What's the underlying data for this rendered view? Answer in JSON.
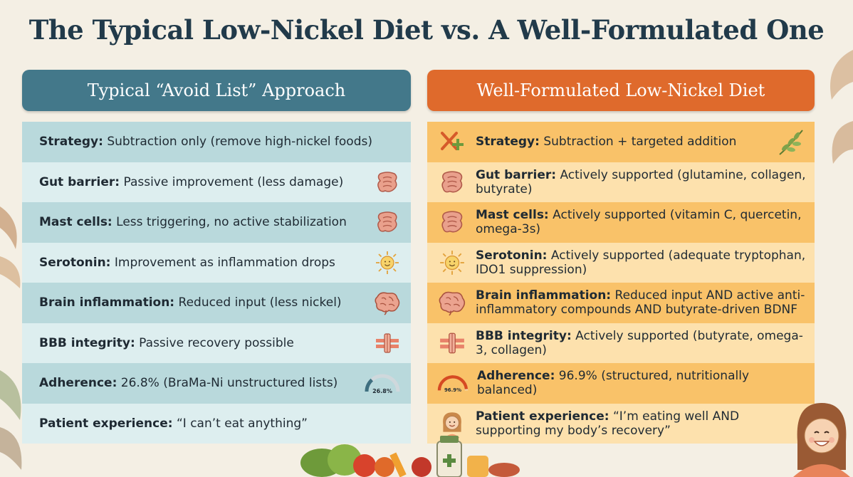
{
  "title": "The Typical Low-Nickel Diet vs. A Well-Formulated One",
  "left": {
    "header": "Typical “Avoid List” Approach",
    "rows": [
      {
        "label": "Strategy:",
        "text": "Subtraction only (remove high-nickel foods)",
        "icon": ""
      },
      {
        "label": "Gut barrier:",
        "text": "Passive improvement (less damage)",
        "icon": "intestine-icon"
      },
      {
        "label": "Mast cells:",
        "text": "Less triggering, no active stabilization",
        "icon": "intestine-icon"
      },
      {
        "label": "Serotonin:",
        "text": "Improvement as inflammation drops",
        "icon": "sun-face-icon"
      },
      {
        "label": "Brain inflammation:",
        "text": "Reduced input (less nickel)",
        "icon": "brain-icon"
      },
      {
        "label": "BBB integrity:",
        "text": "Passive recovery possible",
        "icon": "barrier-icon"
      },
      {
        "label": "Adherence:",
        "text": "26.8% (BraMa-Ni unstructured lists)",
        "icon": "gauge-icon",
        "gauge_value": "26.8%",
        "gauge_fraction": 0.268
      },
      {
        "label": "Patient experience:",
        "text": "“I can’t eat anything”",
        "icon": ""
      }
    ]
  },
  "right": {
    "header": "Well-Formulated Low-Nickel Diet",
    "rows": [
      {
        "label": "Strategy:",
        "text": "Subtraction + targeted addition",
        "icon": "cross-plus-icon"
      },
      {
        "label": "Gut barrier:",
        "text": "Actively supported (glutamine, collagen, butyrate)",
        "icon": "intestine-icon"
      },
      {
        "label": "Mast cells:",
        "text": "Actively supported (vitamin C, quercetin, omega-3s)",
        "icon": "intestine-icon"
      },
      {
        "label": "Serotonin:",
        "text": "Actively supported (adequate tryptophan, IDO1 suppression)",
        "icon": "sun-face-icon"
      },
      {
        "label": "Brain inflammation:",
        "text": "Reduced input AND active anti-inflammatory compounds AND butyrate-driven BDNF",
        "icon": "brain-icon"
      },
      {
        "label": "BBB integrity:",
        "text": "Actively supported (butyrate, omega-3, collagen)",
        "icon": "barrier-icon"
      },
      {
        "label": "Adherence:",
        "text": "96.9% (structured, nutritionally balanced)",
        "icon": "gauge-icon",
        "gauge_value": "96.9%",
        "gauge_fraction": 0.969
      },
      {
        "label": "Patient experience:",
        "text": "“I’m eating well AND supporting my body’s recovery”",
        "icon": "woman-face-icon"
      }
    ]
  },
  "colors": {
    "title": "#213a4a",
    "left_header": "#43788a",
    "right_header": "#df6a2c",
    "left_row_dark": "#b9d9dc",
    "left_row_light": "#ddeeef",
    "right_row_dark": "#f9c269",
    "right_row_light": "#fde1ad"
  }
}
